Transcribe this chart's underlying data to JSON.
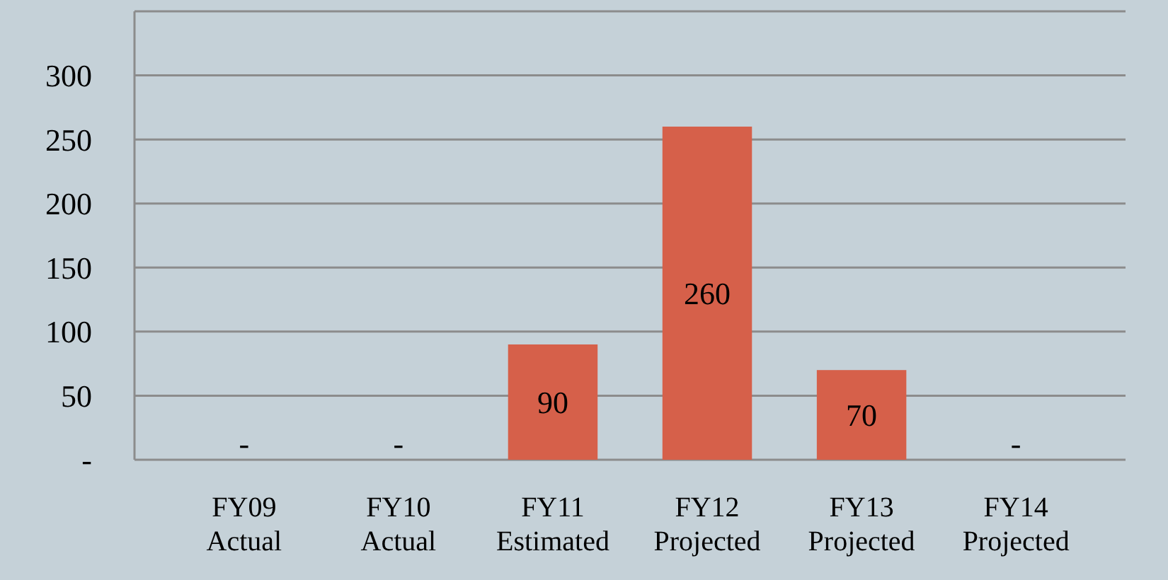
{
  "chart_data": {
    "type": "bar",
    "categories": [
      "FY09 Actual",
      "FY10 Actual",
      "FY11 Estimated",
      "FY12 Projected",
      "FY13 Projected",
      "FY14 Projected"
    ],
    "values": [
      0,
      0,
      90,
      260,
      70,
      0
    ],
    "value_labels": [
      "-",
      "-",
      "90",
      "260",
      "70",
      "-"
    ],
    "color": "#d6604a",
    "ylim": [
      0,
      350
    ],
    "yticks": [
      {
        "value": 0,
        "label": "-"
      },
      50,
      100,
      150,
      200,
      250,
      300,
      {
        "value": 350,
        "label": null
      }
    ],
    "grid": "y"
  }
}
